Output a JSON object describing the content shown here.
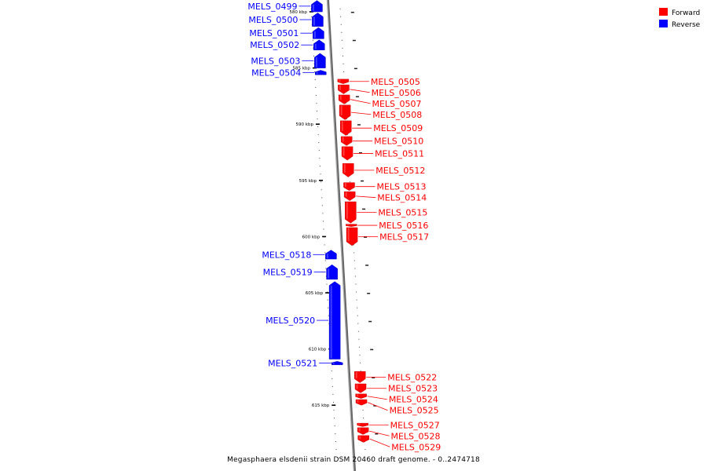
{
  "chart_data": {
    "type": "linear-genome-map",
    "caption": "Megasphaera elsdenii strain DSM 20460 draft genome. - 0..2474718",
    "legend": [
      {
        "label": "Forward",
        "color": "#ff0000"
      },
      {
        "label": "Reverse",
        "color": "#0000ff"
      }
    ],
    "axis_unit": "kbp",
    "ticks": [
      {
        "kbp": 580,
        "label": "580 kbp"
      },
      {
        "kbp": 585,
        "label": "585 kbp"
      },
      {
        "kbp": 590,
        "label": "590 kbp"
      },
      {
        "kbp": 595,
        "label": "595 kbp"
      },
      {
        "kbp": 600,
        "label": "600 kbp"
      },
      {
        "kbp": 605,
        "label": "605 kbp"
      },
      {
        "kbp": 610,
        "label": "610 kbp"
      },
      {
        "kbp": 615,
        "label": "615 kbp"
      }
    ],
    "genes": [
      {
        "id": "MELS_0499",
        "strand": "reverse",
        "start": 579.0,
        "end": 580.0
      },
      {
        "id": "MELS_0500",
        "strand": "reverse",
        "start": 580.1,
        "end": 581.3
      },
      {
        "id": "MELS_0501",
        "strand": "reverse",
        "start": 581.4,
        "end": 582.4
      },
      {
        "id": "MELS_0502",
        "strand": "reverse",
        "start": 582.5,
        "end": 583.4
      },
      {
        "id": "MELS_0503",
        "strand": "reverse",
        "start": 583.7,
        "end": 585.0
      },
      {
        "id": "MELS_0504",
        "strand": "reverse",
        "start": 585.2,
        "end": 585.6
      },
      {
        "id": "MELS_0505",
        "strand": "forward",
        "start": 586.0,
        "end": 586.4
      },
      {
        "id": "MELS_0506",
        "strand": "forward",
        "start": 586.5,
        "end": 587.3
      },
      {
        "id": "MELS_0507",
        "strand": "forward",
        "start": 587.4,
        "end": 588.2
      },
      {
        "id": "MELS_0508",
        "strand": "forward",
        "start": 588.3,
        "end": 589.6
      },
      {
        "id": "MELS_0509",
        "strand": "forward",
        "start": 589.7,
        "end": 591.0
      },
      {
        "id": "MELS_0510",
        "strand": "forward",
        "start": 591.1,
        "end": 591.9
      },
      {
        "id": "MELS_0511",
        "strand": "forward",
        "start": 592.0,
        "end": 593.2
      },
      {
        "id": "MELS_0512",
        "strand": "forward",
        "start": 593.5,
        "end": 594.7
      },
      {
        "id": "MELS_0513",
        "strand": "forward",
        "start": 595.2,
        "end": 595.9
      },
      {
        "id": "MELS_0514",
        "strand": "forward",
        "start": 596.0,
        "end": 596.8
      },
      {
        "id": "MELS_0515",
        "strand": "forward",
        "start": 596.9,
        "end": 598.8
      },
      {
        "id": "MELS_0516",
        "strand": "forward",
        "start": 598.9,
        "end": 599.1
      },
      {
        "id": "MELS_0517",
        "strand": "forward",
        "start": 599.2,
        "end": 600.8
      },
      {
        "id": "MELS_0518",
        "strand": "reverse",
        "start": 601.2,
        "end": 602.0
      },
      {
        "id": "MELS_0519",
        "strand": "reverse",
        "start": 602.5,
        "end": 603.8
      },
      {
        "id": "MELS_0520",
        "strand": "reverse",
        "start": 604.0,
        "end": 610.9
      },
      {
        "id": "MELS_0521",
        "strand": "reverse",
        "start": 611.1,
        "end": 611.4
      },
      {
        "id": "MELS_0522",
        "strand": "forward",
        "start": 612.0,
        "end": 613.0
      },
      {
        "id": "MELS_0523",
        "strand": "forward",
        "start": 613.1,
        "end": 613.9
      },
      {
        "id": "MELS_0524",
        "strand": "forward",
        "start": 614.0,
        "end": 614.4
      },
      {
        "id": "MELS_0525",
        "strand": "forward",
        "start": 614.5,
        "end": 615.0
      },
      {
        "id": "MELS_0527",
        "strand": "forward",
        "start": 616.6,
        "end": 616.9
      },
      {
        "id": "MELS_0528",
        "strand": "forward",
        "start": 617.0,
        "end": 617.6
      },
      {
        "id": "MELS_0529",
        "strand": "forward",
        "start": 617.7,
        "end": 618.3
      }
    ]
  }
}
